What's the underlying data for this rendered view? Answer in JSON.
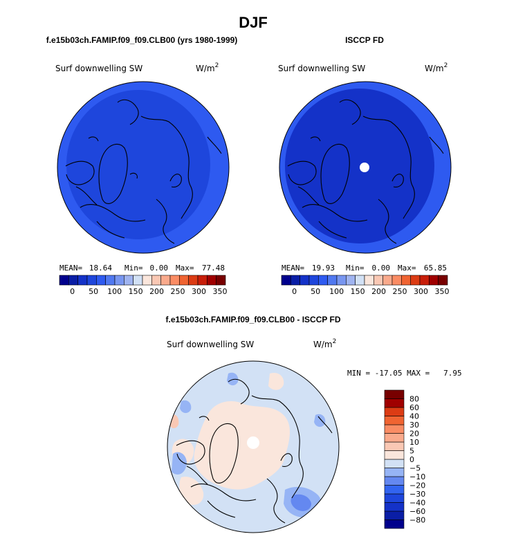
{
  "figure": {
    "title": "DJF"
  },
  "panels": [
    {
      "title": "f.e15b03ch.FAMIP.f09_f09.CLB00 (yrs 1980-1999)",
      "variable": "Surf downwelling SW",
      "units": "W/m",
      "units_sup": "2",
      "stats": {
        "mean_label": "MEAN=",
        "mean": "18.64",
        "min_label": "Min=",
        "min": "0.00",
        "max_label": "Max=",
        "max": "77.48"
      },
      "pole_hole": false
    },
    {
      "title": "ISCCP FD",
      "variable": "Surf downwelling SW",
      "units": "W/m",
      "units_sup": "2",
      "stats": {
        "mean_label": "MEAN=",
        "mean": "19.93",
        "min_label": "Min=",
        "min": "0.00",
        "max_label": "Max=",
        "max": "65.85"
      },
      "pole_hole": true
    },
    {
      "title": "f.e15b03ch.FAMIP.f09_f09.CLB00 - ISCCP FD",
      "variable": "Surf downwelling SW",
      "units": "W/m",
      "units_sup": "2",
      "stats_line": "MIN = -17.05 MAX =   7.95",
      "pole_hole": true
    }
  ],
  "chart_data": [
    {
      "type": "heatmap",
      "projection": "north-polar-stereographic",
      "title": "f.e15b03ch.FAMIP.f09_f09.CLB00 (yrs 1980-1999)",
      "variable": "Surf downwelling SW",
      "units": "W/m^2",
      "mean": 18.64,
      "min": 0.0,
      "max": 77.48,
      "colorbar": {
        "orientation": "horizontal",
        "levels": [
          0,
          25,
          50,
          75,
          100,
          125,
          150,
          175,
          200,
          225,
          250,
          275,
          300,
          325,
          350
        ],
        "tick_labels": [
          "0",
          "50",
          "100",
          "150",
          "200",
          "250",
          "300",
          "350"
        ],
        "colors": [
          "#00008c",
          "#0a1ea6",
          "#1432c8",
          "#1e46dc",
          "#2e5af0",
          "#5078f0",
          "#7896f0",
          "#a0b4f0",
          "#d2e1f5",
          "#fae6dc",
          "#fac8b4",
          "#faaa8c",
          "#fa8c64",
          "#f06432",
          "#dc3c14",
          "#c81e0a",
          "#a00000",
          "#780000"
        ]
      },
      "field_colors": [
        "#1e46dc",
        "#2e5af0"
      ]
    },
    {
      "type": "heatmap",
      "projection": "north-polar-stereographic",
      "title": "ISCCP FD",
      "variable": "Surf downwelling SW",
      "units": "W/m^2",
      "mean": 19.93,
      "min": 0.0,
      "max": 65.85,
      "colorbar": {
        "orientation": "horizontal",
        "levels": [
          0,
          25,
          50,
          75,
          100,
          125,
          150,
          175,
          200,
          225,
          250,
          275,
          300,
          325,
          350
        ],
        "tick_labels": [
          "0",
          "50",
          "100",
          "150",
          "200",
          "250",
          "300",
          "350"
        ],
        "colors": [
          "#00008c",
          "#0a1ea6",
          "#1432c8",
          "#1e46dc",
          "#2e5af0",
          "#5078f0",
          "#7896f0",
          "#a0b4f0",
          "#d2e1f5",
          "#fae6dc",
          "#fac8b4",
          "#faaa8c",
          "#fa8c64",
          "#f06432",
          "#dc3c14",
          "#c81e0a",
          "#a00000",
          "#780000"
        ]
      },
      "field_colors": [
        "#1432c8",
        "#2e5af0"
      ]
    },
    {
      "type": "heatmap",
      "projection": "north-polar-stereographic",
      "title": "f.e15b03ch.FAMIP.f09_f09.CLB00 - ISCCP FD",
      "variable": "Surf downwelling SW",
      "units": "W/m^2",
      "min": -17.05,
      "max": 7.95,
      "colorbar": {
        "orientation": "vertical",
        "levels": [
          -80,
          -60,
          -40,
          -30,
          -20,
          -10,
          -5,
          0,
          5,
          10,
          20,
          30,
          40,
          60,
          80
        ],
        "tick_labels": [
          "-80",
          "-60",
          "-40",
          "-30",
          "-20",
          "-10",
          "-5",
          "0",
          "5",
          "10",
          "20",
          "30",
          "40",
          "60",
          "80"
        ],
        "colors": [
          "#00008c",
          "#0a1ea6",
          "#1432c8",
          "#1e46dc",
          "#3264f0",
          "#6488f0",
          "#96b4f5",
          "#d2e1f5",
          "#fae6dc",
          "#fac8b4",
          "#faaa8c",
          "#fa8c64",
          "#f06432",
          "#dc3c14",
          "#a00000",
          "#780000"
        ]
      },
      "field_colors": [
        "#d2e1f5",
        "#fae6dc"
      ]
    }
  ]
}
